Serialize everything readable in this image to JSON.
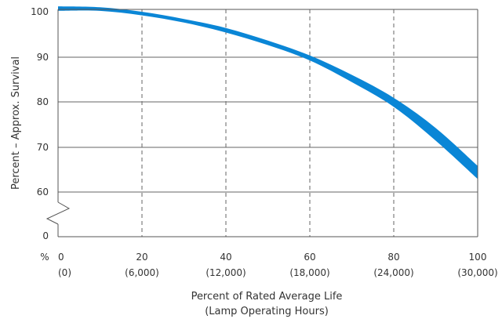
{
  "colors": {
    "band": "#0a86d6",
    "grid": "#666666",
    "axis": "#555555",
    "text": "#333333"
  },
  "chart_data": {
    "type": "area",
    "xlabel": [
      "Percent of Rated Average Life",
      "(Lamp Operating Hours)"
    ],
    "ylabel": "Percent – Approx. Survival",
    "x_unit_marker": "%",
    "x_ticks": [
      {
        "pct": "0",
        "hours": "(0)"
      },
      {
        "pct": "20",
        "hours": "(6,000)"
      },
      {
        "pct": "40",
        "hours": "(12,000)"
      },
      {
        "pct": "60",
        "hours": "(18,000)"
      },
      {
        "pct": "80",
        "hours": "(24,000)"
      },
      {
        "pct": "100",
        "hours": "(30,000)"
      }
    ],
    "y_ticks": [
      "100",
      "90",
      "80",
      "70",
      "60",
      "0"
    ],
    "xlim": [
      0,
      100
    ],
    "ylim": [
      60,
      100
    ],
    "axis_break": true,
    "series": [
      {
        "x": [
          0,
          10,
          20,
          30,
          40,
          50,
          60,
          70,
          80,
          90,
          100
        ],
        "upper": [
          101.2,
          101.0,
          100.0,
          98.4,
          96.4,
          93.6,
          90.3,
          86.0,
          80.9,
          74.2,
          65.8
        ],
        "lower": [
          100.2,
          100.2,
          99.2,
          97.6,
          95.4,
          92.6,
          89.2,
          84.4,
          78.9,
          71.4,
          62.9
        ]
      }
    ]
  }
}
